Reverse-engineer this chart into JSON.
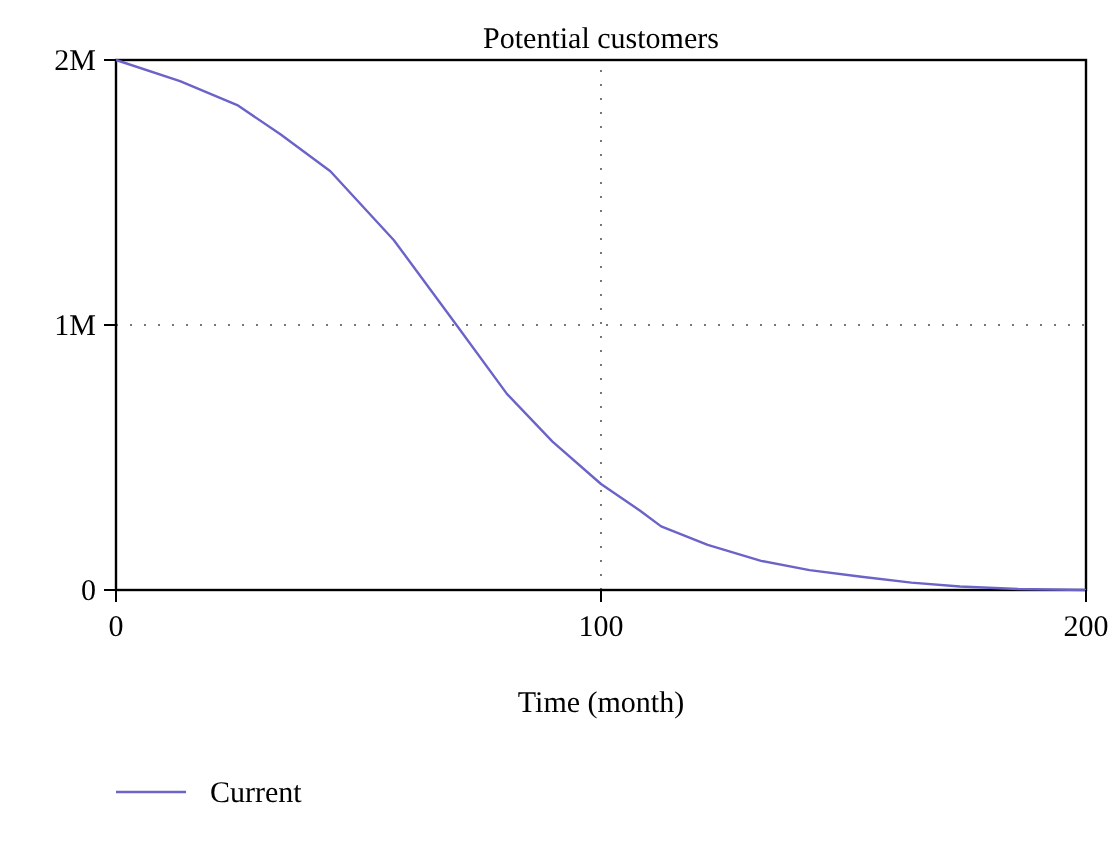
{
  "chart_data": {
    "type": "line",
    "title": "Potential customers",
    "xlabel": "Time (month)",
    "xlim": [
      0,
      200
    ],
    "xticks": [
      0,
      100,
      200
    ],
    "ylim": [
      0,
      2000000
    ],
    "yticks": [
      {
        "value": 0,
        "label": "0"
      },
      {
        "value": 1000000,
        "label": "1M"
      },
      {
        "value": 2000000,
        "label": "2M"
      }
    ],
    "grid": true,
    "legend": "bottom left",
    "line_style": "solid",
    "series": [
      {
        "name": "Current",
        "color": "#6b63c8",
        "x": [
          0,
          13.2,
          25,
          33.9,
          44.2,
          57.3,
          70.2,
          80.6,
          90,
          100,
          108,
          112.4,
          122,
          133,
          143,
          153.7,
          164,
          174,
          186,
          200
        ],
        "values": [
          2000000,
          1920000,
          1830000,
          1720000,
          1580000,
          1320000,
          1000000,
          740000,
          560000,
          400000,
          300000,
          240000,
          170000,
          110000,
          75000,
          50000,
          28000,
          13000,
          4000,
          0
        ]
      }
    ]
  }
}
